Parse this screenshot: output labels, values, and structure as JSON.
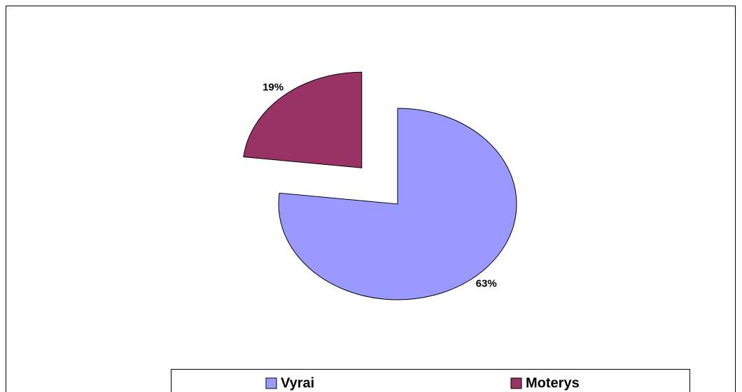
{
  "chart_data": {
    "type": "pie",
    "categories": [
      "Vyrai",
      "Moterys"
    ],
    "values": [
      63,
      19
    ],
    "value_labels": [
      "63%",
      "19%"
    ],
    "colors": [
      "#9999ff",
      "#993366"
    ],
    "legend": "bottom"
  }
}
